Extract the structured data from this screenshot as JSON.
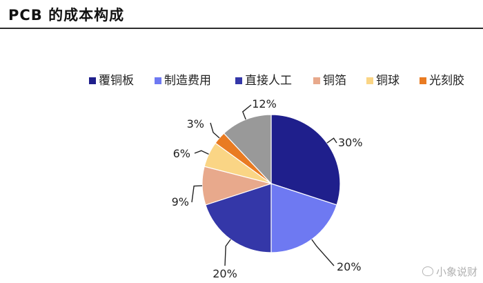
{
  "page_title": "PCB 的成本构成",
  "watermark": "小象说财",
  "chart_data": {
    "type": "pie",
    "categories": [
      "覆铜板",
      "制造费用",
      "直接人工",
      "铜箔",
      "铜球",
      "光刻胶",
      ""
    ],
    "values": [
      30,
      20,
      20,
      9,
      6,
      3,
      12
    ],
    "value_labels": [
      "30%",
      "20%",
      "20%",
      "9%",
      "6%",
      "3%",
      "12%"
    ],
    "colors": [
      "#1f1f8c",
      "#6e79f2",
      "#3437a8",
      "#e8a98c",
      "#fad585",
      "#e97b22",
      "#999999"
    ],
    "legend_position": "top"
  }
}
